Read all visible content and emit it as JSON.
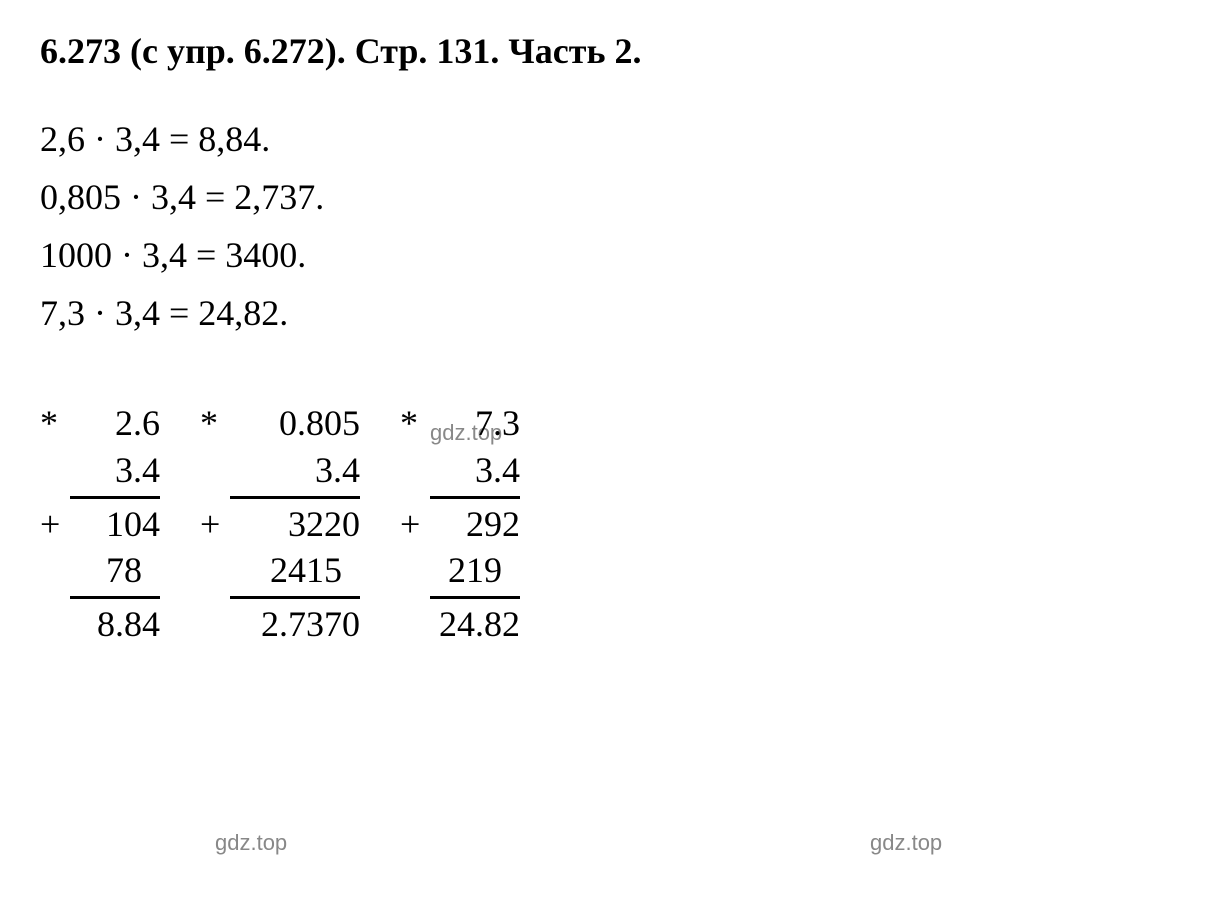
{
  "heading": "6.273 (с упр. 6.272).  Стр. 131. Часть 2.",
  "equations": [
    "2,6 · 3,4  =  8,84.",
    "0,805 · 3,4  =  2,737.",
    "1000 · 3,4  =  3400.",
    "7,3 · 3,4  =  24,82."
  ],
  "watermarks": {
    "w1": "gdz.top",
    "w2": "gdz.top",
    "w3": "gdz.top"
  },
  "longmult": [
    {
      "op_top": "*",
      "line1": "2.6",
      "line2": "3.4",
      "op_mid": "+",
      "partial1": "104",
      "partial2": "78",
      "result": "8.84"
    },
    {
      "op_top": "*",
      "line1": "0.805",
      "line2": "3.4",
      "op_mid": "+",
      "partial1": "3220",
      "partial2": "2415",
      "result": "2.7370"
    },
    {
      "op_top": "*",
      "line1": "7.3",
      "line2": "3.4",
      "op_mid": "+",
      "partial1": "292",
      "partial2": "219",
      "result": "24.82"
    }
  ],
  "colors": {
    "text": "#000000",
    "background": "#ffffff",
    "watermark": "#888888"
  },
  "fonts": {
    "heading_size": 36,
    "body_size": 36,
    "watermark_size": 22
  }
}
